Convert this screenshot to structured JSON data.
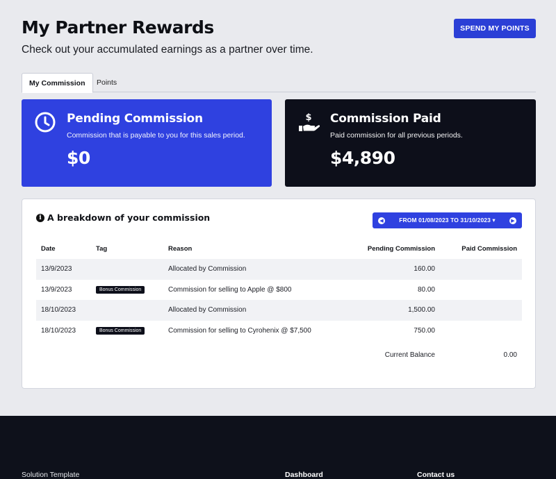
{
  "header": {
    "title": "My Partner Rewards",
    "subtitle": "Check out your accumulated earnings as a partner over time.",
    "spend_button": "SPEND MY POINTS"
  },
  "tabs": [
    {
      "label": "My Commission",
      "active": true
    },
    {
      "label": "Points",
      "active": false
    }
  ],
  "cards": {
    "pending": {
      "icon": "clock-icon",
      "title": "Pending Commission",
      "description": "Commission that is payable to you for this sales period.",
      "amount": "$0",
      "color": "#2f41e0"
    },
    "paid": {
      "icon": "hand-dollar-icon",
      "title": "Commission Paid",
      "description": "Paid commission for all previous periods.",
      "amount": "$4,890",
      "color": "#0d0f1a"
    }
  },
  "breakdown": {
    "title": "A breakdown of your commission",
    "date_range": "FROM 01/08/2023 TO 31/10/2023",
    "columns": {
      "date": "Date",
      "tag": "Tag",
      "reason": "Reason",
      "pending": "Pending Commission",
      "paid": "Paid Commission"
    },
    "rows": [
      {
        "date": "13/9/2023",
        "tag": "",
        "reason": "Allocated by Commission",
        "pending": "160.00",
        "paid": ""
      },
      {
        "date": "13/9/2023",
        "tag": "Bonus Commission",
        "reason": "Commission for selling to Apple @ $800",
        "pending": "80.00",
        "paid": ""
      },
      {
        "date": "18/10/2023",
        "tag": "",
        "reason": "Allocated by Commission",
        "pending": "1,500.00",
        "paid": ""
      },
      {
        "date": "18/10/2023",
        "tag": "Bonus Commission",
        "reason": "Commission for selling to Cyrohenix @ $7,500",
        "pending": "750.00",
        "paid": ""
      }
    ],
    "balance_label": "Current Balance",
    "balance_value": "0.00"
  },
  "footer": {
    "brand": "Solution Template",
    "dashboard": "Dashboard",
    "contact": "Contact us"
  }
}
